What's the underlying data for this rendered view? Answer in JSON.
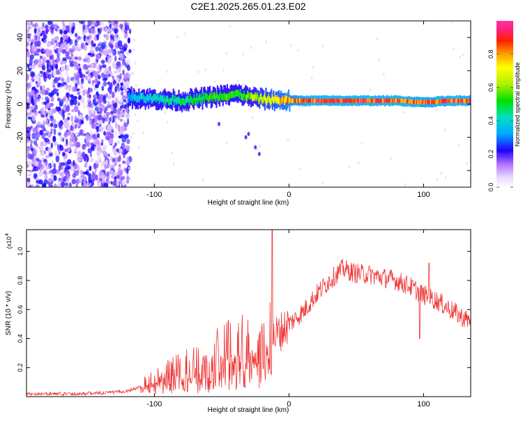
{
  "title": "C2E1.2025.265.01.23.E02",
  "colors": {
    "snr_line": "#ee3333",
    "axis": "#000000",
    "background": "#ffffff"
  },
  "chart_data": [
    {
      "type": "heatmap",
      "name": "spectrogram",
      "xlabel": "Height of straight line (km)",
      "ylabel": "Frequency (Hz)",
      "xlim": [
        -195,
        135
      ],
      "ylim": [
        -50,
        50
      ],
      "x_ticks": [
        -100,
        0,
        100
      ],
      "y_ticks": [
        -40,
        -20,
        0,
        20,
        40
      ],
      "colorbar": {
        "label": "Normalized spectral amplitude",
        "range": [
          0,
          1
        ],
        "ticks": [
          0.0,
          0.2,
          0.4,
          0.6,
          0.8
        ],
        "tick_labels": [
          "0.0",
          "0.2",
          "0.4",
          "0.6",
          "0.8"
        ]
      },
      "signal_track": [
        {
          "x": -120,
          "freq": 4,
          "amp": 0.35
        },
        {
          "x": -100,
          "freq": 3,
          "amp": 0.45
        },
        {
          "x": -80,
          "freq": 2,
          "amp": 0.5
        },
        {
          "x": -60,
          "freq": 4,
          "amp": 0.55
        },
        {
          "x": -40,
          "freq": 6,
          "amp": 0.55
        },
        {
          "x": -20,
          "freq": 3,
          "amp": 0.7
        },
        {
          "x": 0,
          "freq": 2,
          "amp": 0.85
        },
        {
          "x": 20,
          "freq": 2,
          "amp": 0.95
        },
        {
          "x": 40,
          "freq": 2,
          "amp": 0.95
        },
        {
          "x": 60,
          "freq": 2,
          "amp": 0.95
        },
        {
          "x": 80,
          "freq": 2,
          "amp": 0.95
        },
        {
          "x": 100,
          "freq": 1,
          "amp": 0.9
        },
        {
          "x": 120,
          "freq": 2,
          "amp": 0.95
        },
        {
          "x": 130,
          "freq": 2,
          "amp": 0.95
        }
      ]
    },
    {
      "type": "line",
      "name": "snr",
      "xlabel": "Height of straight line (km)",
      "ylabel": "SNR (10 * v/v)",
      "y_scale_label": "(x10",
      "y_scale_exp": "4",
      "xlim": [
        -195,
        135
      ],
      "ylim": [
        0,
        1.15
      ],
      "x_ticks": [
        -100,
        0,
        100
      ],
      "y_ticks": [
        0.2,
        0.4,
        0.6,
        0.8,
        1.0
      ],
      "y_tick_labels": [
        "0.2",
        "0.4",
        "0.6",
        "0.8",
        "1.0"
      ],
      "x": [
        -195,
        -180,
        -160,
        -140,
        -130,
        -120,
        -110,
        -100,
        -90,
        -80,
        -70,
        -60,
        -50,
        -40,
        -30,
        -20,
        -15,
        -12,
        -10,
        -5,
        0,
        10,
        20,
        30,
        40,
        50,
        60,
        70,
        80,
        90,
        100,
        110,
        120,
        130,
        135
      ],
      "y": [
        0.02,
        0.02,
        0.02,
        0.025,
        0.03,
        0.04,
        0.07,
        0.1,
        0.15,
        0.18,
        0.2,
        0.23,
        0.27,
        0.3,
        0.33,
        0.35,
        0.37,
        0.4,
        0.42,
        0.46,
        0.5,
        0.58,
        0.7,
        0.8,
        0.88,
        0.85,
        0.84,
        0.82,
        0.8,
        0.76,
        0.7,
        0.66,
        0.6,
        0.54,
        0.52
      ]
    }
  ]
}
